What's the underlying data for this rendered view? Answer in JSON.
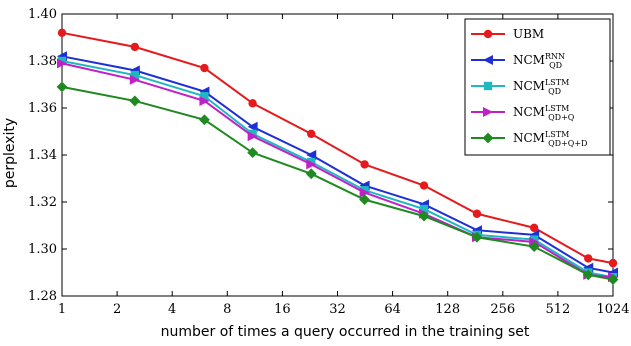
{
  "chart_data": {
    "type": "line",
    "xlabel": "number of times a query occurred in the training set",
    "ylabel": "perplexity",
    "ylim": [
      1.28,
      1.4
    ],
    "yticks": [
      "1.28",
      "1.30",
      "1.32",
      "1.34",
      "1.36",
      "1.38",
      "1.40"
    ],
    "xscale": "log2",
    "xlim": [
      1,
      1024
    ],
    "xticks": [
      "1",
      "2",
      "4",
      "8",
      "16",
      "32",
      "64",
      "128",
      "256",
      "512",
      "1024"
    ],
    "grid": false,
    "legend_position": "top-right",
    "x": [
      1,
      2.5,
      6,
      11,
      23,
      45,
      95,
      185,
      380,
      750,
      1024
    ],
    "series": [
      {
        "name": "UBM",
        "sup": "",
        "sub": "",
        "color": "#e41a1c",
        "marker": "circle",
        "values": [
          1.392,
          1.386,
          1.377,
          1.362,
          1.349,
          1.336,
          1.327,
          1.315,
          1.309,
          1.296,
          1.294
        ]
      },
      {
        "name": "NCM",
        "sup": "RNN",
        "sub": "QD",
        "color": "#1f2fd6",
        "marker": "triangle-left",
        "values": [
          1.382,
          1.376,
          1.367,
          1.352,
          1.34,
          1.327,
          1.319,
          1.308,
          1.306,
          1.292,
          1.29
        ]
      },
      {
        "name": "NCM",
        "sup": "LSTM",
        "sub": "QD",
        "color": "#20b8c0",
        "marker": "square",
        "values": [
          1.38,
          1.374,
          1.365,
          1.349,
          1.337,
          1.325,
          1.317,
          1.306,
          1.304,
          1.29,
          1.288
        ]
      },
      {
        "name": "NCM",
        "sup": "LSTM",
        "sub": "QD+Q",
        "color": "#c020c8",
        "marker": "triangle-right",
        "values": [
          1.379,
          1.372,
          1.363,
          1.348,
          1.336,
          1.324,
          1.315,
          1.305,
          1.303,
          1.289,
          1.288
        ]
      },
      {
        "name": "NCM",
        "sup": "LSTM",
        "sub": "QD+Q+D",
        "color": "#1f8a1f",
        "marker": "diamond",
        "values": [
          1.369,
          1.363,
          1.355,
          1.341,
          1.332,
          1.321,
          1.314,
          1.305,
          1.301,
          1.289,
          1.287
        ]
      }
    ]
  }
}
